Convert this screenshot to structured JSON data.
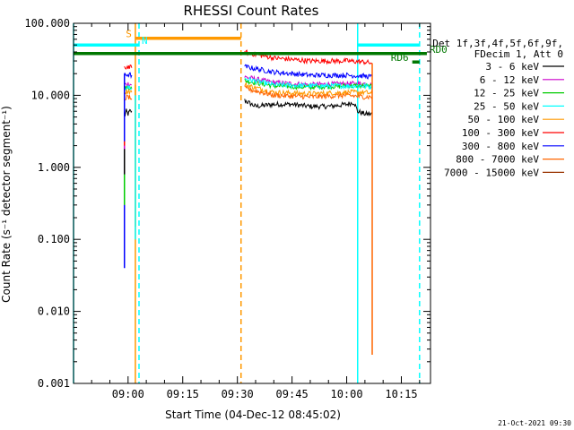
{
  "chart_data": {
    "type": "line",
    "title": "RHESSI Count Rates",
    "xlabel": "Start Time (04-Dec-12 08:45:02)",
    "ylabel": "Count Rate (s⁻¹ detector segment⁻¹)",
    "y_scale": "log",
    "ylim": [
      0.001,
      100
    ],
    "xlim": [
      "08:45:02",
      "10:23:00"
    ],
    "x_ticks": [
      "09:00",
      "09:15",
      "09:30",
      "09:45",
      "10:00",
      "10:15"
    ],
    "y_ticks": [
      "0.001",
      "0.010",
      "0.100",
      "1.000",
      "10.000",
      "100.000"
    ],
    "legend_header": [
      "Det 1f,3f,4f,5f,6f,9f,",
      "FDecim 1, Att 0"
    ],
    "legend_position": "right",
    "series": [
      {
        "name": "3 - 6 keV",
        "color": "#000000",
        "segments": [
          {
            "x": [
              "08:59:00",
              "08:59:30",
              "09:00:00",
              "09:00:30",
              "09:01:00"
            ],
            "y": [
              5.0,
              6.0,
              5.5,
              6.0,
              6.0
            ]
          },
          {
            "x": [
              "09:32:00",
              "09:35:00",
              "09:40:00",
              "09:45:00",
              "09:50:00",
              "09:55:00",
              "10:00:00",
              "10:02:00",
              "10:03:00",
              "10:05:00",
              "10:07:00"
            ],
            "y": [
              8.5,
              7.0,
              7.5,
              7.5,
              7.0,
              7.0,
              7.5,
              8.0,
              6.0,
              5.5,
              5.5
            ]
          }
        ]
      },
      {
        "name": "6 - 12 keV",
        "color": "#cc00cc",
        "segments": [
          {
            "x": [
              "08:59:00",
              "09:00:00",
              "09:01:00"
            ],
            "y": [
              14.0,
              14.5,
              14.0
            ]
          },
          {
            "x": [
              "09:32:00",
              "09:40:00",
              "09:50:00",
              "10:00:00",
              "10:05:00",
              "10:07:00"
            ],
            "y": [
              18.0,
              15.0,
              14.0,
              14.5,
              14.5,
              14.0
            ]
          }
        ]
      },
      {
        "name": "12 - 25 keV",
        "color": "#00cc00",
        "segments": [
          {
            "x": [
              "08:59:00",
              "09:00:00",
              "09:01:00"
            ],
            "y": [
              12.5,
              13.0,
              12.5
            ]
          },
          {
            "x": [
              "09:32:00",
              "09:40:00",
              "09:50:00",
              "10:00:00",
              "10:05:00",
              "10:07:00"
            ],
            "y": [
              16.0,
              13.5,
              13.0,
              13.5,
              13.5,
              13.0
            ]
          }
        ]
      },
      {
        "name": "25 - 50 keV",
        "color": "#00ffff",
        "segments": [
          {
            "x": [
              "08:59:00",
              "09:00:00",
              "09:01:00"
            ],
            "y": [
              13.0,
              13.0,
              12.5
            ]
          },
          {
            "x": [
              "09:32:00",
              "09:40:00",
              "09:50:00",
              "10:00:00",
              "10:05:00",
              "10:07:00"
            ],
            "y": [
              17.0,
              14.0,
              13.5,
              13.5,
              13.5,
              13.0
            ]
          }
        ]
      },
      {
        "name": "50 - 100 keV",
        "color": "#ff9900",
        "segments": [
          {
            "x": [
              "08:59:00",
              "09:00:00",
              "09:01:00"
            ],
            "y": [
              11.0,
              11.5,
              11.0
            ]
          },
          {
            "x": [
              "09:32:00",
              "09:40:00",
              "09:50:00",
              "10:00:00",
              "10:05:00",
              "10:07:00"
            ],
            "y": [
              14.0,
              11.0,
              10.5,
              11.0,
              11.0,
              10.5
            ]
          }
        ]
      },
      {
        "name": "100 - 300 keV",
        "color": "#ff0000",
        "segments": [
          {
            "x": [
              "08:59:00",
              "09:00:00",
              "09:01:00"
            ],
            "y": [
              24.0,
              25.0,
              24.0
            ]
          },
          {
            "x": [
              "09:32:00",
              "09:35:00",
              "09:40:00",
              "09:50:00",
              "10:00:00",
              "10:05:00",
              "10:07:00"
            ],
            "y": [
              40.0,
              37.0,
              33.0,
              30.0,
              30.0,
              29.0,
              28.0
            ]
          }
        ]
      },
      {
        "name": "300 - 800 keV",
        "color": "#0000ff",
        "segments": [
          {
            "x": [
              "08:59:00",
              "09:00:00",
              "09:01:00"
            ],
            "y": [
              19.0,
              19.5,
              19.0
            ]
          },
          {
            "x": [
              "09:32:00",
              "09:40:00",
              "09:50:00",
              "10:00:00",
              "10:05:00",
              "10:07:00"
            ],
            "y": [
              25.0,
              21.0,
              19.0,
              19.0,
              18.5,
              18.0
            ]
          }
        ]
      },
      {
        "name": "800 - 7000 keV",
        "color": "#ff6600",
        "segments": [
          {
            "x": [
              "08:59:00",
              "09:00:00",
              "09:01:00"
            ],
            "y": [
              9.0,
              9.5,
              9.0
            ]
          },
          {
            "x": [
              "09:32:00",
              "09:40:00",
              "09:50:00",
              "10:00:00",
              "10:05:00",
              "10:07:00"
            ],
            "y": [
              12.5,
              10.0,
              9.5,
              10.0,
              9.5,
              9.5
            ]
          }
        ]
      },
      {
        "name": "7000 - 15000 keV",
        "color": "#993300",
        "segments": []
      }
    ],
    "drop_lines": [
      {
        "color": "#0000ff",
        "x": "08:59:00",
        "y": [
          0.04,
          20.0
        ]
      },
      {
        "color": "#ff0000",
        "x": "08:59:00",
        "y": [
          0.5,
          2.3
        ]
      },
      {
        "color": "#cc00cc",
        "x": "08:59:00",
        "y": [
          0.3,
          2.0
        ]
      },
      {
        "color": "#00cc00",
        "x": "08:59:00",
        "y": [
          0.3,
          1.5
        ]
      },
      {
        "color": "#000000",
        "x": "08:59:00",
        "y": [
          0.8,
          1.8
        ]
      },
      {
        "color": "#ff9900",
        "x": "09:02:00",
        "y": [
          0.15,
          14.0
        ]
      },
      {
        "color": "#00ffff",
        "x": "09:02:00",
        "y": [
          0.1,
          10.0
        ]
      },
      {
        "color": "#ff6600",
        "x": "10:07:00",
        "y": [
          0.0025,
          28.0
        ]
      }
    ],
    "vertical_lines": [
      {
        "color": "#00ffff",
        "style": "solid",
        "x": "08:45:02"
      },
      {
        "color": "#ff9900",
        "style": "solid",
        "x": "09:02:00"
      },
      {
        "color": "#00ffff",
        "style": "dashed",
        "x": "09:03:00"
      },
      {
        "color": "#ff9900",
        "style": "dashed",
        "x": "09:31:00"
      },
      {
        "color": "#00ffff",
        "style": "solid",
        "x": "10:03:00"
      },
      {
        "color": "#00ffff",
        "style": "dashed",
        "x": "10:20:00"
      }
    ],
    "flag_bars": [
      {
        "label": "S",
        "label_color": "#ff9900",
        "color": "#ff9900",
        "x": [
          "09:02:00",
          "09:31:00"
        ],
        "y": 62,
        "label_side": "left"
      },
      {
        "label": "N",
        "label_color": "#00ffff",
        "color": "#00ffff",
        "x": [
          "08:45:02",
          "09:03:00"
        ],
        "y": 50,
        "label_side": "right"
      },
      {
        "label": "",
        "label_color": "#00ffff",
        "color": "#00ffff",
        "x": [
          "10:03:00",
          "10:20:00"
        ],
        "y": 50,
        "label_side": "right"
      },
      {
        "label": "RD0",
        "label_color": "#007700",
        "color": "#007700",
        "x": [
          "08:45:02",
          "10:22:00"
        ],
        "y": 38,
        "label_side": "right"
      },
      {
        "label": "RD6",
        "label_color": "#007700",
        "color": "#007700",
        "x": [
          "10:18:00",
          "10:20:00"
        ],
        "y": 29,
        "label_side": "left"
      }
    ],
    "footer_timestamp": "21-Oct-2021 09:30"
  }
}
